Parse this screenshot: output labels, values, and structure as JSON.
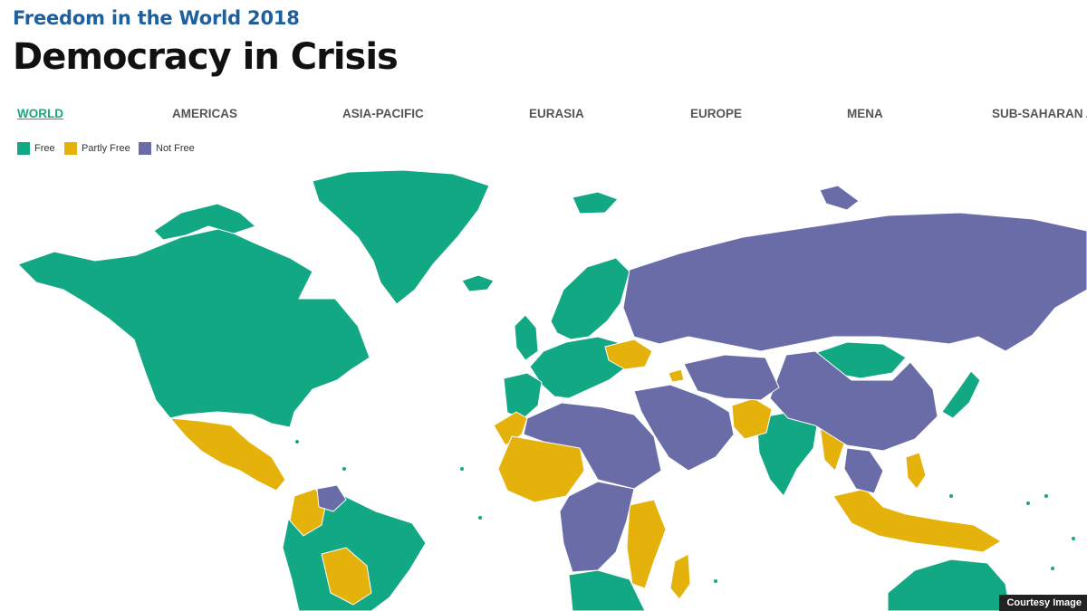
{
  "header": {
    "kicker": "Freedom in the World 2018",
    "title": "Democracy in Crisis"
  },
  "tabs": [
    {
      "label": "WORLD",
      "active": true
    },
    {
      "label": "AMERICAS",
      "active": false
    },
    {
      "label": "ASIA-PACIFIC",
      "active": false
    },
    {
      "label": "EURASIA",
      "active": false
    },
    {
      "label": "EUROPE",
      "active": false
    },
    {
      "label": "MENA",
      "active": false
    },
    {
      "label": "SUB-SAHARAN A",
      "active": false
    }
  ],
  "legend": [
    {
      "label": "Free",
      "color": "#12a883"
    },
    {
      "label": "Partly Free",
      "color": "#e5b20b"
    },
    {
      "label": "Not Free",
      "color": "#6a6ca8"
    }
  ],
  "credit": "Courtesy Image"
}
